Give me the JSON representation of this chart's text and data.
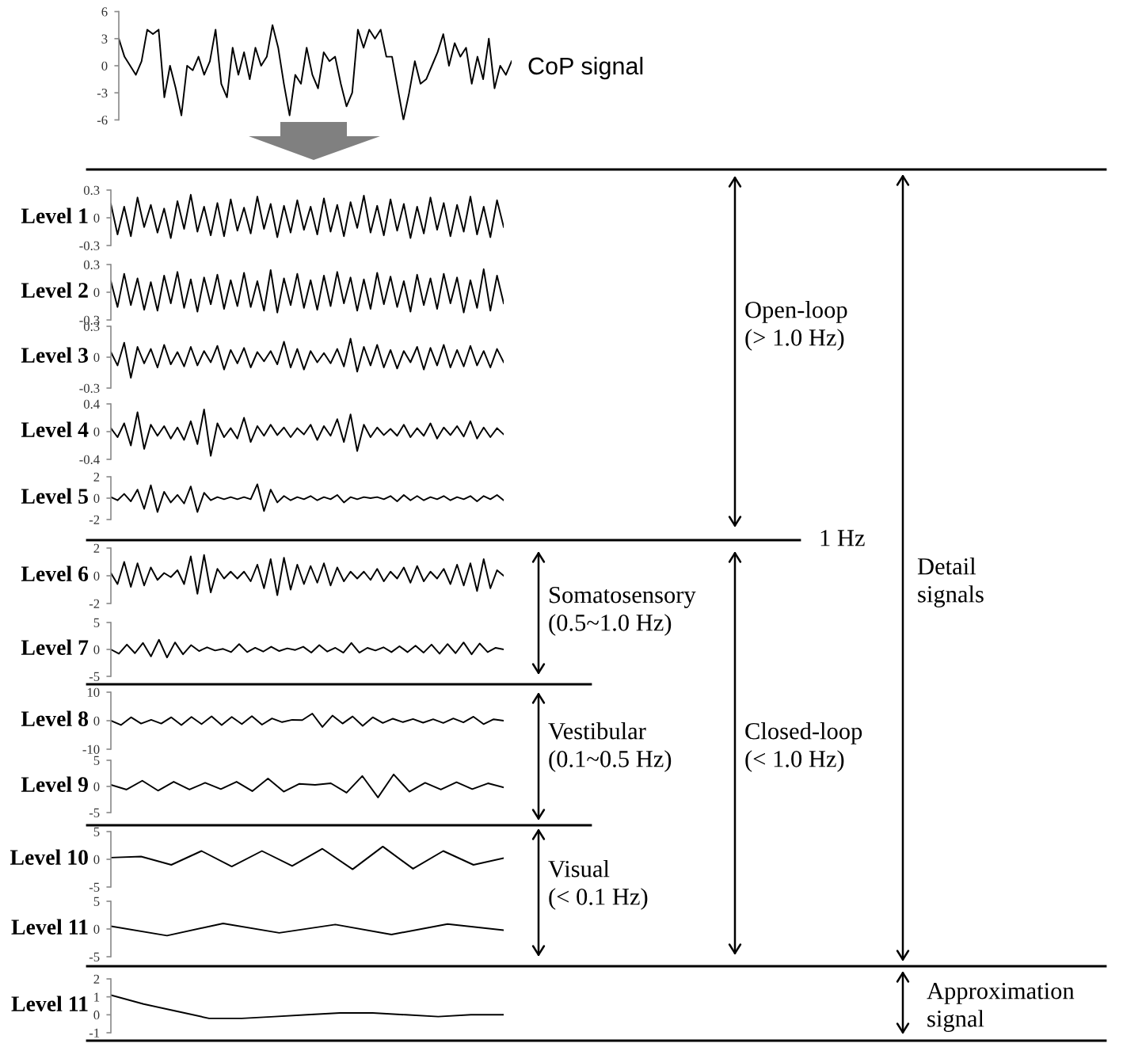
{
  "chart_data": [
    {
      "type": "line",
      "color": "#000000",
      "ylim": [
        -6,
        6
      ],
      "yticks": [
        -6,
        -3,
        0,
        3,
        6
      ],
      "tick_labels": "y",
      "annotations": [
        "CoP signal"
      ],
      "categories": [
        null,
        null,
        null,
        null,
        null,
        null,
        null,
        null,
        null,
        null,
        null,
        null,
        null,
        null,
        null,
        null,
        null,
        null,
        null,
        null,
        null,
        null,
        null,
        null,
        null,
        null,
        null,
        null,
        null,
        null,
        null,
        null,
        null,
        null,
        null,
        null,
        null,
        null,
        null,
        null,
        null,
        null,
        null,
        null,
        null,
        null,
        null,
        null,
        null,
        null,
        null,
        null,
        null,
        null,
        null,
        null,
        null,
        null,
        null,
        null,
        null,
        null,
        null,
        null,
        null,
        null,
        null,
        null,
        null,
        null
      ],
      "values": [
        3,
        1,
        0,
        -1,
        0.5,
        4,
        3.5,
        4,
        -3.5,
        0,
        -2.5,
        -5.5,
        0,
        -0.5,
        1,
        -1,
        0.5,
        4,
        -2,
        -3.5,
        2,
        -1,
        1.5,
        -1.5,
        2,
        0,
        1,
        4.5,
        2,
        -2,
        -5.5,
        -1,
        -2,
        2,
        -1,
        -2.5,
        1.5,
        0.5,
        1,
        -2,
        -4.5,
        -3,
        4,
        2,
        4,
        3,
        4,
        1,
        1,
        -2.5,
        -6,
        -3,
        0.5,
        -2,
        -1.5,
        0,
        1.5,
        3.5,
        0,
        2.5,
        1,
        2,
        -2,
        1,
        -1.5,
        3,
        -2.5,
        0,
        -1,
        0.5
      ]
    },
    {
      "type": "line",
      "ylabel": "Level 1",
      "color": "#000000",
      "ylim": [
        -0.3,
        0.3
      ],
      "yticks": [
        -0.3,
        0,
        0.3
      ],
      "tick_labels": "y",
      "categories": [
        null,
        null,
        null,
        null,
        null,
        null,
        null,
        null,
        null,
        null,
        null,
        null,
        null,
        null,
        null,
        null,
        null,
        null,
        null,
        null,
        null,
        null,
        null,
        null,
        null,
        null,
        null,
        null,
        null,
        null,
        null,
        null,
        null,
        null,
        null,
        null,
        null,
        null,
        null,
        null,
        null,
        null,
        null,
        null,
        null,
        null,
        null,
        null,
        null,
        null,
        null,
        null,
        null,
        null,
        null,
        null,
        null,
        null,
        null,
        null
      ],
      "values": [
        0.15,
        -0.18,
        0.12,
        -0.2,
        0.22,
        -0.1,
        0.14,
        -0.16,
        0.1,
        -0.22,
        0.18,
        -0.12,
        0.25,
        -0.15,
        0.12,
        -0.19,
        0.16,
        -0.2,
        0.2,
        -0.14,
        0.11,
        -0.17,
        0.23,
        -0.12,
        0.15,
        -0.21,
        0.13,
        -0.16,
        0.19,
        -0.13,
        0.12,
        -0.18,
        0.21,
        -0.15,
        0.14,
        -0.2,
        0.17,
        -0.11,
        0.24,
        -0.16,
        0.13,
        -0.19,
        0.2,
        -0.14,
        0.15,
        -0.22,
        0.12,
        -0.17,
        0.22,
        -0.13,
        0.16,
        -0.2,
        0.14,
        -0.15,
        0.23,
        -0.18,
        0.12,
        -0.21,
        0.19,
        -0.1
      ]
    },
    {
      "type": "line",
      "ylabel": "Level 2",
      "color": "#000000",
      "ylim": [
        -0.3,
        0.3
      ],
      "yticks": [
        -0.3,
        0,
        0.3
      ],
      "tick_labels": "y",
      "categories": [
        null,
        null,
        null,
        null,
        null,
        null,
        null,
        null,
        null,
        null,
        null,
        null,
        null,
        null,
        null,
        null,
        null,
        null,
        null,
        null,
        null,
        null,
        null,
        null,
        null,
        null,
        null,
        null,
        null,
        null,
        null,
        null,
        null,
        null,
        null,
        null,
        null,
        null,
        null,
        null,
        null,
        null,
        null,
        null,
        null,
        null,
        null,
        null,
        null,
        null,
        null,
        null,
        null,
        null,
        null,
        null,
        null,
        null,
        null,
        null
      ],
      "values": [
        0.12,
        -0.16,
        0.2,
        -0.14,
        0.15,
        -0.19,
        0.11,
        -0.2,
        0.18,
        -0.12,
        0.22,
        -0.17,
        0.14,
        -0.21,
        0.16,
        -0.13,
        0.19,
        -0.18,
        0.13,
        -0.15,
        0.21,
        -0.16,
        0.12,
        -0.2,
        0.24,
        -0.22,
        0.15,
        -0.14,
        0.2,
        -0.17,
        0.13,
        -0.19,
        0.18,
        -0.15,
        0.22,
        -0.12,
        0.16,
        -0.2,
        0.14,
        -0.18,
        0.21,
        -0.13,
        0.17,
        -0.16,
        0.12,
        -0.21,
        0.19,
        -0.14,
        0.15,
        -0.18,
        0.2,
        -0.12,
        0.16,
        -0.22,
        0.13,
        -0.17,
        0.25,
        -0.2,
        0.18,
        -0.12
      ]
    },
    {
      "type": "line",
      "ylabel": "Level 3",
      "color": "#000000",
      "ylim": [
        -0.3,
        0.3
      ],
      "yticks": [
        -0.3,
        0,
        0.3
      ],
      "tick_labels": "y",
      "annotations": [
        "Open-loop\n(> 1.0 Hz)"
      ],
      "categories": [
        null,
        null,
        null,
        null,
        null,
        null,
        null,
        null,
        null,
        null,
        null,
        null,
        null,
        null,
        null,
        null,
        null,
        null,
        null,
        null,
        null,
        null,
        null,
        null,
        null,
        null,
        null,
        null,
        null,
        null,
        null,
        null,
        null,
        null,
        null,
        null,
        null,
        null,
        null,
        null,
        null,
        null,
        null,
        null,
        null,
        null,
        null,
        null,
        null,
        null,
        null,
        null,
        null,
        null,
        null,
        null,
        null,
        null,
        null,
        null
      ],
      "values": [
        0.05,
        -0.08,
        0.14,
        -0.2,
        0.1,
        -0.06,
        0.08,
        -0.1,
        0.12,
        -0.07,
        0.05,
        -0.09,
        0.1,
        -0.08,
        0.06,
        -0.05,
        0.11,
        -0.12,
        0.07,
        -0.06,
        0.09,
        -0.1,
        0.05,
        -0.04,
        0.06,
        -0.07,
        0.15,
        -0.1,
        0.08,
        -0.12,
        0.06,
        -0.05,
        0.04,
        -0.06,
        0.08,
        -0.09,
        0.18,
        -0.14,
        0.1,
        -0.08,
        0.12,
        -0.1,
        0.07,
        -0.11,
        0.06,
        -0.05,
        0.1,
        -0.12,
        0.09,
        -0.08,
        0.12,
        -0.1,
        0.07,
        -0.09,
        0.11,
        -0.08,
        0.06,
        -0.1,
        0.08,
        -0.05
      ]
    },
    {
      "type": "line",
      "ylabel": "Level 4",
      "color": "#000000",
      "ylim": [
        -0.4,
        0.4
      ],
      "yticks": [
        -0.4,
        0,
        0.4
      ],
      "tick_labels": "y",
      "categories": [
        null,
        null,
        null,
        null,
        null,
        null,
        null,
        null,
        null,
        null,
        null,
        null,
        null,
        null,
        null,
        null,
        null,
        null,
        null,
        null,
        null,
        null,
        null,
        null,
        null,
        null,
        null,
        null,
        null,
        null,
        null,
        null,
        null,
        null,
        null,
        null,
        null,
        null,
        null,
        null,
        null,
        null,
        null,
        null,
        null,
        null,
        null,
        null,
        null,
        null,
        null,
        null,
        null,
        null,
        null,
        null,
        null,
        null,
        null,
        null
      ],
      "values": [
        0.05,
        -0.08,
        0.12,
        -0.2,
        0.28,
        -0.25,
        0.1,
        -0.06,
        0.08,
        -0.1,
        0.06,
        -0.12,
        0.15,
        -0.18,
        0.32,
        -0.35,
        0.12,
        -0.08,
        0.05,
        -0.1,
        0.2,
        -0.15,
        0.08,
        -0.06,
        0.1,
        -0.05,
        0.06,
        -0.08,
        0.05,
        -0.04,
        0.1,
        -0.12,
        0.08,
        -0.06,
        0.18,
        -0.15,
        0.25,
        -0.28,
        0.1,
        -0.08,
        0.06,
        -0.05,
        0.04,
        -0.06,
        0.1,
        -0.08,
        0.05,
        -0.06,
        0.12,
        -0.1,
        0.06,
        -0.05,
        0.08,
        -0.07,
        0.15,
        -0.1,
        0.06,
        -0.08,
        0.05,
        -0.04
      ]
    },
    {
      "type": "line",
      "ylabel": "Level 5",
      "color": "#000000",
      "ylim": [
        -2,
        2
      ],
      "yticks": [
        -2,
        0,
        2
      ],
      "tick_labels": "y",
      "annotations": [
        "1 Hz"
      ],
      "categories": [
        null,
        null,
        null,
        null,
        null,
        null,
        null,
        null,
        null,
        null,
        null,
        null,
        null,
        null,
        null,
        null,
        null,
        null,
        null,
        null,
        null,
        null,
        null,
        null,
        null,
        null,
        null,
        null,
        null,
        null,
        null,
        null,
        null,
        null,
        null,
        null,
        null,
        null,
        null,
        null,
        null,
        null,
        null,
        null,
        null,
        null,
        null,
        null,
        null,
        null,
        null,
        null,
        null,
        null,
        null,
        null,
        null,
        null,
        null,
        null
      ],
      "values": [
        0.1,
        -0.2,
        0.4,
        -0.3,
        0.8,
        -1.0,
        1.2,
        -1.3,
        0.6,
        -0.4,
        0.3,
        -0.5,
        1.1,
        -1.3,
        0.5,
        -0.2,
        0.1,
        -0.1,
        0.1,
        -0.1,
        0.1,
        -0.1,
        1.3,
        -1.2,
        0.8,
        -0.4,
        0.2,
        -0.2,
        0.1,
        -0.1,
        0.2,
        -0.2,
        0.1,
        -0.1,
        0.3,
        -0.4,
        0.1,
        -0.1,
        0.1,
        0,
        0.1,
        -0.1,
        0.2,
        -0.3,
        0.3,
        -0.2,
        0.2,
        -0.2,
        0.1,
        -0.1,
        0.2,
        -0.2,
        0.1,
        -0.1,
        0.2,
        -0.3,
        0.2,
        -0.1,
        0.3,
        -0.2
      ]
    },
    {
      "type": "line",
      "ylabel": "Level 6",
      "color": "#000000",
      "ylim": [
        -2,
        2
      ],
      "yticks": [
        -2,
        0,
        2
      ],
      "tick_labels": "y",
      "annotations": [
        "Somatosensory\n(0.5~1.0 Hz)"
      ],
      "categories": [
        null,
        null,
        null,
        null,
        null,
        null,
        null,
        null,
        null,
        null,
        null,
        null,
        null,
        null,
        null,
        null,
        null,
        null,
        null,
        null,
        null,
        null,
        null,
        null,
        null,
        null,
        null,
        null,
        null,
        null,
        null,
        null,
        null,
        null,
        null,
        null,
        null,
        null,
        null,
        null,
        null,
        null,
        null,
        null,
        null,
        null,
        null,
        null,
        null,
        null,
        null,
        null,
        null,
        null,
        null,
        null,
        null,
        null,
        null,
        null
      ],
      "values": [
        0.2,
        -0.6,
        1.0,
        -0.8,
        0.9,
        -0.7,
        0.6,
        -0.3,
        0.2,
        -0.1,
        0.4,
        -0.6,
        1.4,
        -1.3,
        1.5,
        -1.2,
        0.5,
        -0.2,
        0.3,
        -0.2,
        0.3,
        -0.4,
        0.8,
        -0.9,
        1.2,
        -1.4,
        1.3,
        -1.0,
        0.8,
        -0.6,
        0.7,
        -0.5,
        0.9,
        -0.7,
        0.6,
        -0.4,
        0.3,
        -0.2,
        0.3,
        -0.3,
        0.5,
        -0.4,
        0.3,
        -0.2,
        0.6,
        -0.5,
        0.7,
        -0.4,
        0.3,
        -0.2,
        0.5,
        -0.6,
        0.8,
        -0.7,
        0.9,
        -1.1,
        1.2,
        -0.9,
        0.4,
        0
      ]
    },
    {
      "type": "line",
      "ylabel": "Level 7",
      "color": "#000000",
      "ylim": [
        -5,
        5
      ],
      "yticks": [
        -5,
        0,
        5
      ],
      "tick_labels": "y",
      "annotations": [
        "Detail\nsignals"
      ],
      "categories": [
        null,
        null,
        null,
        null,
        null,
        null,
        null,
        null,
        null,
        null,
        null,
        null,
        null,
        null,
        null,
        null,
        null,
        null,
        null,
        null,
        null,
        null,
        null,
        null,
        null,
        null,
        null,
        null,
        null,
        null,
        null,
        null,
        null,
        null,
        null,
        null,
        null,
        null,
        null,
        null,
        null,
        null,
        null,
        null,
        null,
        null,
        null,
        null,
        null,
        null
      ],
      "values": [
        0,
        -0.8,
        0.9,
        -0.7,
        1.2,
        -1.3,
        1.8,
        -1.5,
        1.3,
        -0.9,
        0.8,
        -0.3,
        0.4,
        -0.2,
        0.1,
        -0.5,
        1.0,
        -0.5,
        0.3,
        -0.4,
        0.5,
        -0.3,
        0.2,
        -0.1,
        0.5,
        -0.6,
        0.8,
        -0.4,
        0.3,
        -0.6,
        1.2,
        -0.6,
        0.3,
        -0.2,
        0.4,
        -0.5,
        0.6,
        -0.5,
        0.7,
        -0.6,
        0.9,
        -0.8,
        1.0,
        -0.7,
        1.3,
        -0.9,
        1.1,
        -0.5,
        0.3,
        0
      ]
    },
    {
      "type": "line",
      "ylabel": "Level 8",
      "color": "#000000",
      "ylim": [
        -10,
        10
      ],
      "yticks": [
        -10,
        0,
        10
      ],
      "tick_labels": "y",
      "annotations": [
        "Vestibular\n(0.1~0.5 Hz)",
        "Closed-loop\n(< 1.0 Hz)"
      ],
      "categories": [
        null,
        null,
        null,
        null,
        null,
        null,
        null,
        null,
        null,
        null,
        null,
        null,
        null,
        null,
        null,
        null,
        null,
        null,
        null,
        null,
        null,
        null,
        null,
        null,
        null,
        null,
        null,
        null,
        null,
        null,
        null,
        null,
        null,
        null,
        null,
        null,
        null,
        null,
        null,
        null
      ],
      "values": [
        0,
        -1.5,
        1.2,
        -1.0,
        0.3,
        -1.0,
        1.2,
        -1.5,
        1.3,
        -1.2,
        1.5,
        -1.5,
        1.3,
        -1.2,
        1.6,
        -1.4,
        0.8,
        -0.5,
        0.3,
        0.2,
        2.5,
        -2.2,
        1.8,
        -1.0,
        1.5,
        -1.8,
        1.2,
        -0.8,
        0.7,
        -0.5,
        0.6,
        -0.7,
        0.5,
        -0.8,
        0.8,
        -0.6,
        1.4,
        -1.2,
        0.5,
        0
      ]
    },
    {
      "type": "line",
      "ylabel": "Level 9",
      "color": "#000000",
      "ylim": [
        -5,
        5
      ],
      "yticks": [
        -5,
        0,
        5
      ],
      "tick_labels": "y",
      "categories": [
        null,
        null,
        null,
        null,
        null,
        null,
        null,
        null,
        null,
        null,
        null,
        null,
        null,
        null,
        null,
        null,
        null,
        null,
        null,
        null,
        null,
        null,
        null,
        null,
        null,
        null
      ],
      "values": [
        0.3,
        -0.6,
        1.1,
        -0.8,
        0.9,
        -0.6,
        0.7,
        -0.5,
        0.9,
        -0.9,
        1.5,
        -1.0,
        0.5,
        0.3,
        0.6,
        -1.2,
        2.0,
        -2.1,
        2.3,
        -1.0,
        0.7,
        -0.6,
        0.8,
        -0.5,
        0.6,
        -0.2
      ]
    },
    {
      "type": "line",
      "ylabel": "Level 10",
      "color": "#000000",
      "ylim": [
        -5,
        5
      ],
      "yticks": [
        -5,
        0,
        5
      ],
      "tick_labels": "y",
      "annotations": [
        "Visual\n(< 0.1 Hz)"
      ],
      "categories": [
        null,
        null,
        null,
        null,
        null,
        null,
        null,
        null,
        null,
        null,
        null,
        null,
        null,
        null
      ],
      "values": [
        0.3,
        0.5,
        -1.0,
        1.5,
        -1.3,
        1.5,
        -1.2,
        1.9,
        -1.8,
        2.3,
        -1.7,
        1.5,
        -1.0,
        0.2
      ]
    },
    {
      "type": "line",
      "ylabel": "Level 11",
      "color": "#000000",
      "ylim": [
        -5,
        5
      ],
      "yticks": [
        -5,
        0,
        5
      ],
      "tick_labels": "y",
      "categories": [
        null,
        null,
        null,
        null,
        null,
        null,
        null,
        null
      ],
      "values": [
        0.5,
        -1.2,
        1.0,
        -0.7,
        0.8,
        -1.0,
        0.9,
        -0.2
      ]
    },
    {
      "type": "line",
      "ylabel": "Level 11",
      "color": "#000000",
      "ylim": [
        -1,
        2
      ],
      "yticks": [
        -1,
        0,
        1,
        2
      ],
      "tick_labels": "y",
      "annotations": [
        "Approximation\nsignal"
      ],
      "categories": [
        null,
        null,
        null,
        null,
        null,
        null,
        null,
        null,
        null,
        null,
        null,
        null,
        null
      ],
      "values": [
        1.1,
        0.6,
        0.2,
        -0.2,
        -0.2,
        -0.1,
        0,
        0.1,
        0.1,
        0,
        -0.1,
        0,
        0
      ]
    }
  ]
}
